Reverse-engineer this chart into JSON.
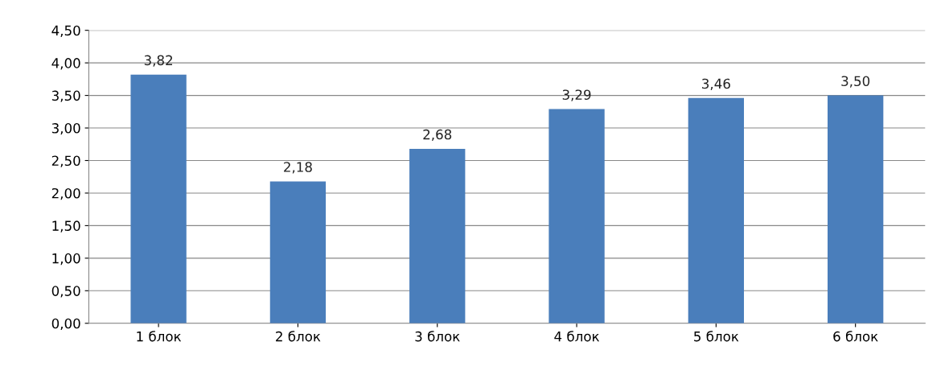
{
  "chart_data": {
    "type": "bar",
    "categories": [
      "1 блок",
      "2 блок",
      "3 блок",
      "4 блок",
      "5 блок",
      "6 блок"
    ],
    "values": [
      3.82,
      2.18,
      2.68,
      3.29,
      3.46,
      3.5
    ],
    "value_labels": [
      "3,82",
      "2,18",
      "2,68",
      "3,29",
      "3,46",
      "3,50"
    ],
    "color": "#4a7ebb",
    "ylim": [
      0,
      4.5
    ],
    "yticks": [
      {
        "value": 0,
        "label": "0,00"
      },
      {
        "value": 0.5,
        "label": "0,50"
      },
      {
        "value": 1,
        "label": "1,00"
      },
      {
        "value": 1.5,
        "label": "1,50"
      },
      {
        "value": 2,
        "label": "2,00"
      },
      {
        "value": 2.5,
        "label": "2,50"
      },
      {
        "value": 3,
        "label": "3,00"
      },
      {
        "value": 3.5,
        "label": "3,50"
      },
      {
        "value": 4,
        "label": "4,00"
      },
      {
        "value": 4.5,
        "label": "4,50"
      }
    ],
    "grid": "y",
    "legend": false
  }
}
